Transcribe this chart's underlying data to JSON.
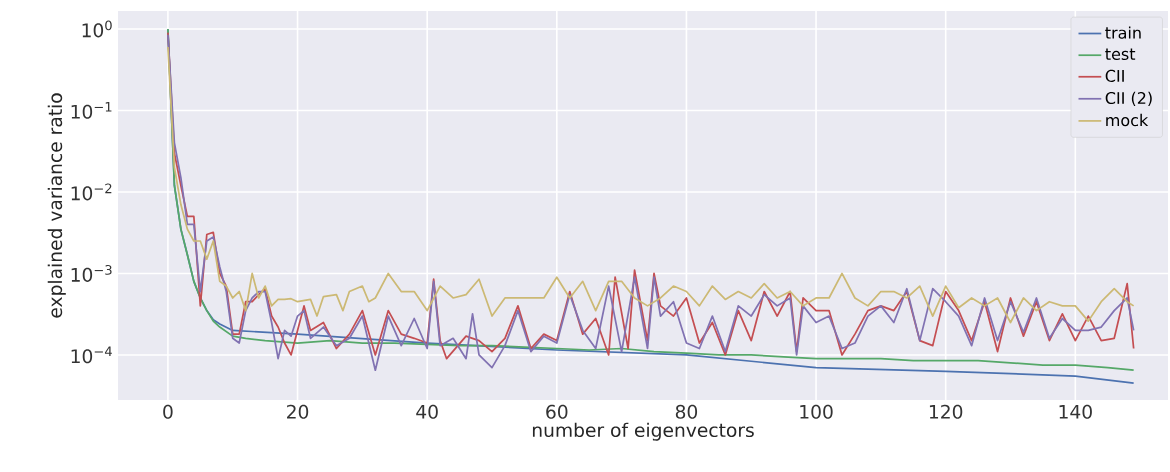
{
  "chart_data": {
    "type": "line",
    "xlabel": "number of eigenvectors",
    "ylabel": "explained variance ratio",
    "log": "y",
    "grid": true,
    "legend": "top right",
    "line_style": "solid",
    "marker": "none",
    "xlim": [
      -7.7,
      154.3
    ],
    "ylim": [
      2.8e-05,
      1.66
    ],
    "xticks": [
      0,
      20,
      40,
      60,
      80,
      100,
      120,
      140
    ],
    "yticks": [
      {
        "value": 1,
        "label": "10$^{0}$"
      },
      {
        "value": 0.1,
        "label": "10$^{−1}$"
      },
      {
        "value": 0.01,
        "label": "10$^{−2}$"
      },
      {
        "value": 0.001,
        "label": "10$^{−3}$"
      },
      {
        "value": 0.0001,
        "label": "10$^{−4}$"
      }
    ],
    "series": [
      {
        "name": "train",
        "color": "#4c72b0",
        "x": [
          0,
          1,
          2,
          3,
          4,
          5,
          6,
          7,
          8,
          10,
          20,
          40,
          60,
          80,
          100,
          120,
          140,
          149
        ],
        "values": [
          1.0,
          0.012,
          0.0035,
          0.0017,
          0.0008,
          0.0005,
          0.00035,
          0.00027,
          0.00024,
          0.0002,
          0.00018,
          0.00014,
          0.000115,
          0.0001,
          7e-05,
          6.3e-05,
          5.5e-05,
          4.5e-05
        ]
      },
      {
        "name": "test",
        "color": "#55a868",
        "x": [
          0,
          1,
          2,
          3,
          4,
          5,
          6,
          7,
          8,
          10,
          12,
          15,
          20,
          25,
          30,
          35,
          40,
          45,
          50,
          55,
          60,
          65,
          70,
          75,
          80,
          85,
          90,
          95,
          100,
          105,
          110,
          115,
          120,
          125,
          130,
          135,
          140,
          145,
          149
        ],
        "values": [
          1.0,
          0.012,
          0.0035,
          0.0017,
          0.0008,
          0.0005,
          0.00035,
          0.00026,
          0.00022,
          0.00017,
          0.00016,
          0.00015,
          0.00014,
          0.00015,
          0.00014,
          0.00014,
          0.000135,
          0.00013,
          0.00013,
          0.000125,
          0.00012,
          0.000115,
          0.00012,
          0.00011,
          0.000105,
          0.0001,
          0.0001,
          9.5e-05,
          9e-05,
          9e-05,
          9e-05,
          8.5e-05,
          8.5e-05,
          8.5e-05,
          8e-05,
          7.5e-05,
          7.5e-05,
          7e-05,
          6.5e-05
        ]
      },
      {
        "name": "CII",
        "color": "#c44e52",
        "x": [
          0,
          1,
          2,
          3,
          4,
          5,
          6,
          7,
          8,
          9,
          10,
          11,
          12,
          13,
          14,
          15,
          16,
          17,
          18,
          19,
          20,
          21,
          22,
          24,
          26,
          28,
          30,
          32,
          34,
          36,
          38,
          40,
          41,
          42,
          43,
          46,
          48,
          50,
          52,
          54,
          56,
          58,
          60,
          62,
          64,
          66,
          68,
          69,
          71,
          72,
          74,
          75,
          76,
          78,
          80,
          82,
          84,
          86,
          88,
          90,
          92,
          94,
          96,
          97,
          98,
          100,
          102,
          104,
          106,
          108,
          110,
          112,
          114,
          116,
          118,
          120,
          122,
          124,
          126,
          128,
          130,
          132,
          134,
          136,
          138,
          140,
          142,
          144,
          146,
          148,
          149
        ],
        "values": [
          0.9,
          0.03,
          0.012,
          0.005,
          0.005,
          0.0004,
          0.003,
          0.0032,
          0.001,
          0.0007,
          0.00018,
          0.00018,
          0.00045,
          0.00045,
          0.00055,
          0.00065,
          0.0003,
          0.00022,
          0.00014,
          0.0001,
          0.0002,
          0.0004,
          0.0002,
          0.00025,
          0.00012,
          0.00018,
          0.00035,
          0.0001,
          0.00035,
          0.00018,
          0.00016,
          0.00014,
          0.00085,
          0.00015,
          9e-05,
          0.00017,
          0.00015,
          0.00011,
          0.00016,
          0.0004,
          0.00012,
          0.00018,
          0.00015,
          0.0006,
          0.00018,
          0.00028,
          0.0001,
          0.0009,
          0.00012,
          0.0011,
          0.00015,
          0.001,
          0.0004,
          0.0003,
          0.0005,
          0.00014,
          0.00025,
          0.0001,
          0.00035,
          0.00015,
          0.0006,
          0.0003,
          0.0006,
          0.00011,
          0.0005,
          0.00035,
          0.00035,
          0.0001,
          0.00018,
          0.00035,
          0.0004,
          0.00035,
          0.0006,
          0.00015,
          0.00013,
          0.0006,
          0.00035,
          0.00015,
          0.00045,
          0.00011,
          0.0005,
          0.00017,
          0.00045,
          0.00015,
          0.00032,
          0.00015,
          0.0003,
          0.00015,
          0.00016,
          0.00075,
          0.00012
        ]
      },
      {
        "name": "CII (2)",
        "color": "#8172b2",
        "x": [
          0,
          1,
          2,
          3,
          4,
          5,
          6,
          7,
          8,
          9,
          10,
          11,
          12,
          13,
          14,
          15,
          16,
          17,
          18,
          19,
          20,
          21,
          22,
          24,
          26,
          28,
          30,
          32,
          34,
          36,
          38,
          40,
          41,
          42,
          44,
          46,
          47,
          48,
          50,
          52,
          54,
          56,
          58,
          60,
          62,
          64,
          66,
          68,
          70,
          72,
          74,
          75,
          76,
          78,
          80,
          82,
          84,
          86,
          88,
          90,
          92,
          94,
          96,
          97,
          98,
          100,
          102,
          104,
          106,
          108,
          110,
          112,
          114,
          116,
          118,
          120,
          122,
          124,
          126,
          128,
          130,
          132,
          134,
          136,
          138,
          140,
          142,
          144,
          146,
          148,
          149
        ],
        "values": [
          0.85,
          0.04,
          0.015,
          0.004,
          0.004,
          0.0006,
          0.0025,
          0.0028,
          0.0012,
          0.0006,
          0.00016,
          0.00014,
          0.00035,
          0.0005,
          0.0006,
          0.0006,
          0.00025,
          9e-05,
          0.0002,
          0.00017,
          0.0003,
          0.00035,
          0.00016,
          0.00022,
          0.00013,
          0.00016,
          0.0003,
          6.5e-05,
          0.0003,
          0.00013,
          0.00028,
          0.00012,
          0.0008,
          0.00013,
          0.00016,
          9e-05,
          0.00032,
          0.0001,
          7e-05,
          0.00013,
          0.00035,
          0.00011,
          0.00017,
          0.00014,
          0.00055,
          0.0002,
          0.00012,
          0.0007,
          0.00011,
          0.0009,
          0.00012,
          0.0009,
          0.0003,
          0.00045,
          0.00014,
          0.00012,
          0.0003,
          0.00011,
          0.0004,
          0.0003,
          0.00055,
          0.0004,
          0.0005,
          0.0001,
          0.0004,
          0.00025,
          0.0003,
          0.00012,
          0.00014,
          0.0003,
          0.0004,
          0.00025,
          0.00065,
          0.00015,
          0.00065,
          0.00045,
          0.0003,
          0.00013,
          0.0005,
          0.00015,
          0.00045,
          0.00019,
          0.0005,
          0.00016,
          0.00028,
          0.0002,
          0.0002,
          0.00022,
          0.00035,
          0.0005,
          0.0002
        ]
      },
      {
        "name": "mock",
        "color": "#ccb974",
        "x": [
          0,
          1,
          2,
          3,
          4,
          5,
          6,
          7,
          8,
          9,
          10,
          11,
          12,
          13,
          14,
          15,
          16,
          17,
          18,
          19,
          20,
          22,
          23,
          24,
          26,
          27,
          28,
          30,
          31,
          32,
          34,
          36,
          38,
          40,
          42,
          44,
          46,
          48,
          50,
          52,
          54,
          56,
          58,
          60,
          62,
          64,
          66,
          68,
          70,
          72,
          74,
          76,
          78,
          80,
          82,
          84,
          86,
          88,
          90,
          92,
          94,
          96,
          98,
          100,
          102,
          104,
          106,
          108,
          110,
          112,
          114,
          116,
          118,
          120,
          122,
          124,
          126,
          128,
          130,
          132,
          134,
          136,
          138,
          140,
          142,
          144,
          146,
          148,
          149
        ],
        "values": [
          0.6,
          0.02,
          0.007,
          0.0035,
          0.0025,
          0.0025,
          0.0015,
          0.0025,
          0.0008,
          0.0007,
          0.0005,
          0.0006,
          0.00035,
          0.001,
          0.0005,
          0.0007,
          0.0004,
          0.00048,
          0.00048,
          0.00049,
          0.00045,
          0.00048,
          0.0003,
          0.00052,
          0.00055,
          0.00035,
          0.0006,
          0.0007,
          0.00045,
          0.0005,
          0.001,
          0.0006,
          0.0006,
          0.00035,
          0.0007,
          0.0005,
          0.00055,
          0.00085,
          0.0003,
          0.0005,
          0.0005,
          0.0005,
          0.0005,
          0.0009,
          0.0005,
          0.0008,
          0.00035,
          0.0008,
          0.0008,
          0.0005,
          0.0004,
          0.0005,
          0.0007,
          0.0006,
          0.0004,
          0.0007,
          0.00048,
          0.0006,
          0.0005,
          0.00075,
          0.0005,
          0.0006,
          0.0004,
          0.0005,
          0.0005,
          0.001,
          0.0005,
          0.0004,
          0.0006,
          0.0006,
          0.0005,
          0.0007,
          0.0003,
          0.0007,
          0.00038,
          0.0005,
          0.0004,
          0.0005,
          0.00025,
          0.0005,
          0.00035,
          0.00045,
          0.0004,
          0.0004,
          0.00026,
          0.00045,
          0.00065,
          0.00045,
          0.0004
        ]
      }
    ]
  }
}
